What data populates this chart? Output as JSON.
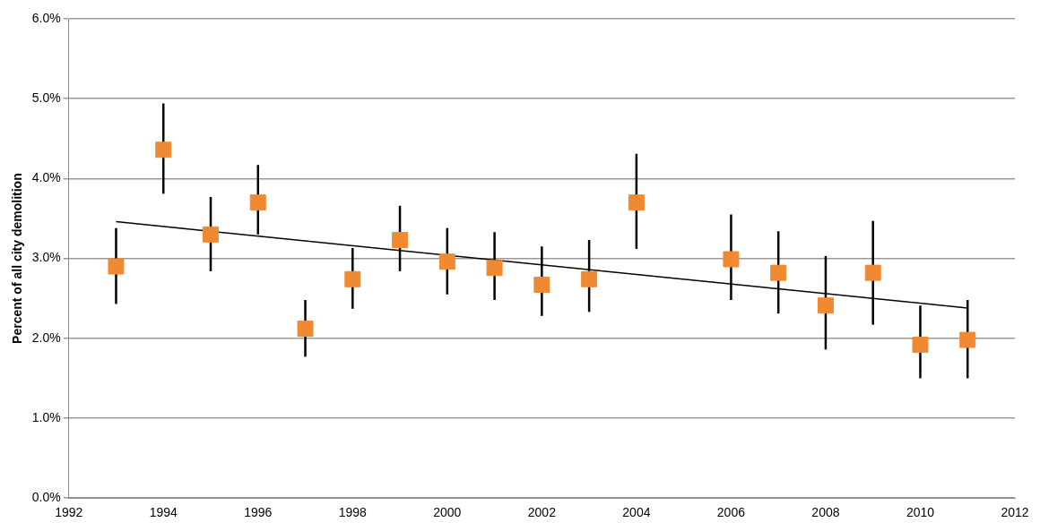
{
  "chart_data": {
    "type": "scatter",
    "ylabel": "Percent of all city demolition",
    "x": [
      1993,
      1994,
      1995,
      1996,
      1997,
      1998,
      1999,
      2000,
      2001,
      2002,
      2003,
      2004,
      2006,
      2007,
      2008,
      2009,
      2010,
      2011
    ],
    "series": [
      {
        "type": "scatter",
        "color": "#f08a32",
        "marker": "square",
        "values": [
          2.9,
          4.36,
          3.3,
          3.7,
          2.12,
          2.74,
          3.23,
          2.96,
          2.88,
          2.67,
          2.74,
          3.7,
          2.99,
          2.82,
          2.41,
          2.82,
          1.92,
          1.98
        ],
        "errors": [
          [
            2.43,
            3.38
          ],
          [
            3.81,
            4.94
          ],
          [
            2.84,
            3.77
          ],
          [
            3.3,
            4.17
          ],
          [
            1.77,
            2.48
          ],
          [
            2.37,
            3.13
          ],
          [
            2.84,
            3.66
          ],
          [
            2.55,
            3.38
          ],
          [
            2.48,
            3.33
          ],
          [
            2.28,
            3.15
          ],
          [
            2.33,
            3.23
          ],
          [
            3.12,
            4.31
          ],
          [
            2.48,
            3.55
          ],
          [
            2.31,
            3.34
          ],
          [
            1.86,
            3.03
          ],
          [
            2.17,
            3.47
          ],
          [
            1.5,
            2.41
          ],
          [
            1.5,
            2.48
          ]
        ]
      },
      {
        "type": "line",
        "color": "#000000",
        "marker": "none",
        "x": [
          1993,
          2011
        ],
        "values": [
          3.46,
          2.38
        ]
      }
    ],
    "xlim": [
      1992,
      2012
    ],
    "xticks": [
      1992,
      1994,
      1996,
      1998,
      2000,
      2002,
      2004,
      2006,
      2008,
      2010,
      2012
    ],
    "ylim": [
      0,
      6
    ],
    "yticks": [
      {
        "value": 0,
        "label": "0.0%"
      },
      {
        "value": 1,
        "label": "1.0%"
      },
      {
        "value": 2,
        "label": "2.0%"
      },
      {
        "value": 3,
        "label": "3.0%"
      },
      {
        "value": 4,
        "label": "4.0%"
      },
      {
        "value": 5,
        "label": "5.0%"
      },
      {
        "value": 6,
        "label": "6.0%"
      }
    ],
    "grid": "y",
    "legend": false
  }
}
